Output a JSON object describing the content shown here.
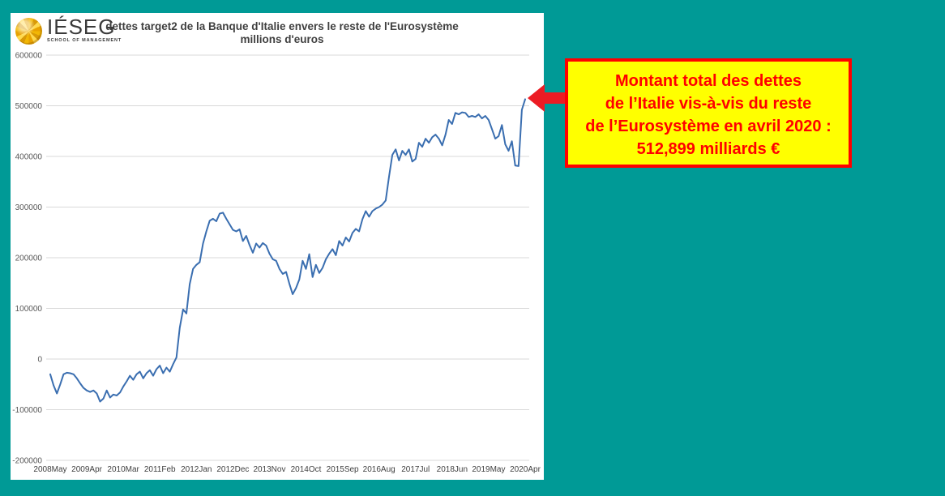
{
  "page": {
    "background": "#009a96"
  },
  "logo": {
    "name": "IÉSEG",
    "subtitle": "SCHOOL OF MANAGEMENT"
  },
  "chart": {
    "title_line1": "dettes target2 de la Banque d'Italie envers le reste de l'Eurosystème",
    "title_line2": "millions d'euros"
  },
  "chart_data": {
    "type": "line",
    "title": "dettes target2 de la Banque d'Italie envers le reste de l'Eurosystème",
    "subtitle": "millions d'euros",
    "x_unit": "monthly, 2008May to 2020Apr (values estimated from plot)",
    "x_tick_labels": [
      "2008May",
      "2009Apr",
      "2010Mar",
      "2011Feb",
      "2012Jan",
      "2012Dec",
      "2013Nov",
      "2014Oct",
      "2015Sep",
      "2016Aug",
      "2017Jul",
      "2018Jun",
      "2019May",
      "2020Apr"
    ],
    "y_ticks": [
      600000,
      500000,
      400000,
      300000,
      200000,
      100000,
      0,
      -100000,
      -200000
    ],
    "ylim": [
      -200000,
      600000
    ],
    "grid": true,
    "legend": "none",
    "line_color": "#3a6eb0",
    "gridline_color": "#d9d9d9",
    "y_label_color": "#595959",
    "x_label_color": "#404040",
    "series": [
      {
        "name": "dettes target2 Banque d'Italie (millions d'euros)",
        "values": [
          -30000,
          -52000,
          -68000,
          -50000,
          -30000,
          -27000,
          -28000,
          -30000,
          -38000,
          -48000,
          -57000,
          -62000,
          -65000,
          -62000,
          -68000,
          -84000,
          -78000,
          -62000,
          -76000,
          -70000,
          -72000,
          -66000,
          -54000,
          -44000,
          -33000,
          -41000,
          -30000,
          -25000,
          -38000,
          -28000,
          -22000,
          -33000,
          -20000,
          -13000,
          -28000,
          -17000,
          -25000,
          -10000,
          3000,
          62000,
          98000,
          90000,
          148000,
          178000,
          186000,
          191000,
          228000,
          252000,
          273000,
          277000,
          272000,
          287000,
          289000,
          277000,
          266000,
          255000,
          252000,
          256000,
          233000,
          243000,
          225000,
          210000,
          228000,
          220000,
          229000,
          224000,
          208000,
          197000,
          194000,
          178000,
          168000,
          172000,
          149000,
          128000,
          140000,
          157000,
          194000,
          178000,
          207000,
          162000,
          186000,
          170000,
          180000,
          197000,
          208000,
          217000,
          205000,
          233000,
          224000,
          240000,
          232000,
          249000,
          257000,
          252000,
          276000,
          292000,
          281000,
          292000,
          297000,
          300000,
          305000,
          313000,
          360000,
          403000,
          414000,
          392000,
          411000,
          403000,
          414000,
          390000,
          395000,
          427000,
          419000,
          435000,
          427000,
          438000,
          443000,
          435000,
          422000,
          443000,
          472000,
          464000,
          486000,
          483000,
          487000,
          486000,
          478000,
          480000,
          478000,
          483000,
          475000,
          480000,
          472000,
          454000,
          435000,
          440000,
          462000,
          424000,
          411000,
          430000,
          382000,
          381000,
          492000,
          512899
        ]
      }
    ],
    "final_point": {
      "x_label": "2020Apr",
      "value": 512899
    }
  },
  "callout": {
    "bg": "#ffff00",
    "border_color": "#ff0000",
    "text_color": "#ff0000",
    "lines": [
      "Montant total des dettes",
      "de l’Italie vis-à-vis du reste",
      "de l’Eurosystème en avril 2020 :",
      "512,899 milliards €"
    ]
  },
  "arrow": {
    "color": "#ec1c24"
  }
}
